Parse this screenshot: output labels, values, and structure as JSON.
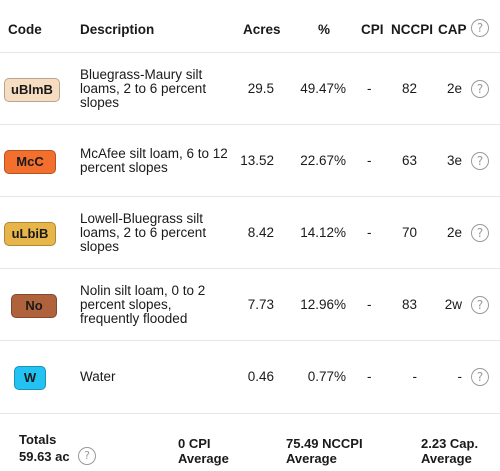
{
  "headers": {
    "code": "Code",
    "description": "Description",
    "acres": "Acres",
    "percent": "%",
    "cpi": "CPI",
    "nccpi": "NCCPI",
    "cap": "CAP"
  },
  "rows": [
    {
      "code": "uBlmB",
      "color": "#f6dcc0",
      "text_color": "#1a1a1a",
      "description": "Bluegrass-Maury silt loams, 2 to 6 percent slopes",
      "acres": "29.5",
      "percent": "49.47%",
      "cpi": "-",
      "nccpi": "82",
      "cap": "2e"
    },
    {
      "code": "McC",
      "color": "#f26f2e",
      "text_color": "#1a1a1a",
      "description": "McAfee silt loam, 6 to 12 percent slopes",
      "acres": "13.52",
      "percent": "22.67%",
      "cpi": "-",
      "nccpi": "63",
      "cap": "3e"
    },
    {
      "code": "uLbiB",
      "color": "#e8b54a",
      "text_color": "#1a1a1a",
      "description": "Lowell-Bluegrass silt loams, 2 to 6 percent slopes",
      "acres": "8.42",
      "percent": "14.12%",
      "cpi": "-",
      "nccpi": "70",
      "cap": "2e"
    },
    {
      "code": "No",
      "color": "#b0623c",
      "text_color": "#1a1a1a",
      "description": "Nolin silt loam, 0 to 2 percent slopes, frequently flooded",
      "acres": "7.73",
      "percent": "12.96%",
      "cpi": "-",
      "nccpi": "83",
      "cap": "2w"
    },
    {
      "code": "W",
      "color": "#22c3f2",
      "text_color": "#1a1a1a",
      "description": "Water",
      "acres": "0.46",
      "percent": "0.77%",
      "cpi": "-",
      "nccpi": "-",
      "cap": "-"
    }
  ],
  "help_glyph": "?",
  "totals": {
    "label": "Totals",
    "acres": "59.63 ac",
    "cpi_value": "0 CPI",
    "cpi_suffix": "Average",
    "nccpi_value": "75.49 NCCPI",
    "nccpi_suffix": "Average",
    "cap_value": "2.23 Cap.",
    "cap_suffix": "Average"
  },
  "icons": {
    "help": "question-circle-icon"
  }
}
